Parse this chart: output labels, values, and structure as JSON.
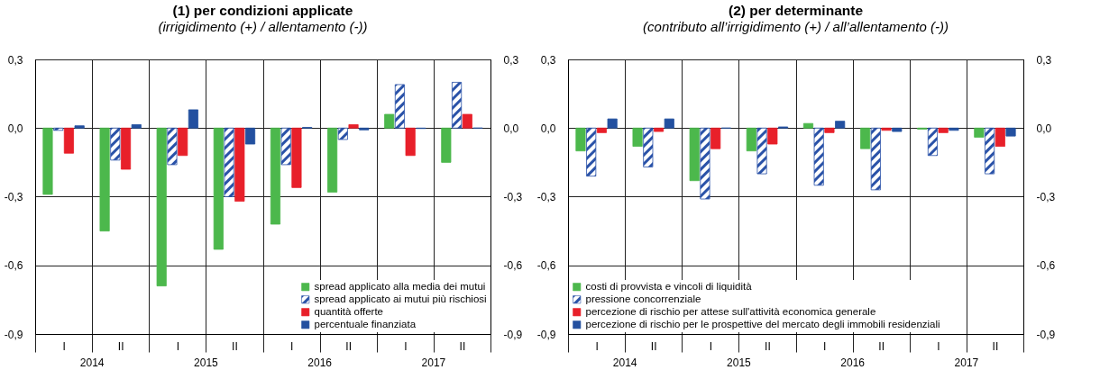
{
  "chart_data": [
    {
      "type": "bar",
      "title": "(1) per condizioni applicate",
      "subtitle": "(irrigidimento (+) / allentamento (-))",
      "categories": [
        "I",
        "II",
        "I",
        "II",
        "I",
        "II",
        "I",
        "II"
      ],
      "series": [
        {
          "name": "spread applicato alla media dei mutui",
          "color": "#4cb84c",
          "values": [
            -0.29,
            -0.45,
            -0.69,
            -0.53,
            -0.42,
            -0.28,
            0.06,
            -0.15
          ]
        },
        {
          "name": "spread applicato ai mutui più rischiosi",
          "color": "#2a52a8",
          "values": [
            -0.01,
            -0.14,
            -0.16,
            -0.3,
            -0.16,
            -0.05,
            0.19,
            0.2
          ]
        },
        {
          "name": "quantità offerte",
          "color": "#e8202a",
          "values": [
            -0.11,
            -0.18,
            -0.12,
            -0.32,
            -0.26,
            0.015,
            -0.12,
            0.06
          ]
        },
        {
          "name": "percentuale finanziata",
          "color": "#2350a0",
          "values": [
            0.01,
            0.015,
            0.08,
            -0.07,
            0.003,
            -0.008,
            -0.002,
            0.0
          ]
        }
      ],
      "ylim": [
        -0.9,
        0.3
      ],
      "yticks": [
        {
          "value": -0.9,
          "label": "-0,9"
        },
        {
          "value": -0.6,
          "label": "-0,6"
        },
        {
          "value": -0.3,
          "label": "-0,3"
        },
        {
          "value": 0,
          "label": "0,0"
        },
        {
          "value": 0.3,
          "label": "0,3"
        }
      ],
      "grid": true,
      "legend": "bottom right",
      "annotations": [
        "2014",
        "2015",
        "2016",
        "2017"
      ]
    },
    {
      "type": "bar",
      "title": "(2) per determinante",
      "subtitle": "(contributo all’irrigidimento (+) / all’allentamento (-))",
      "categories": [
        "I",
        "II",
        "I",
        "II",
        "I",
        "II",
        "I",
        "II"
      ],
      "series": [
        {
          "name": "costi di provvista e vincoli di liquidità",
          "color": "#4cb84c",
          "values": [
            -0.1,
            -0.08,
            -0.23,
            -0.1,
            0.02,
            -0.09,
            -0.005,
            -0.04
          ]
        },
        {
          "name": "pressione concorrenziale",
          "color": "#2a52a8",
          "values": [
            -0.21,
            -0.17,
            -0.31,
            -0.2,
            -0.25,
            -0.27,
            -0.12,
            -0.2
          ]
        },
        {
          "name": "percezione di rischio per attese sull'attività economica generale",
          "color": "#e8202a",
          "values": [
            -0.02,
            -0.015,
            -0.09,
            -0.07,
            -0.02,
            -0.01,
            -0.02,
            -0.08
          ]
        },
        {
          "name": "percezione di rischio per le prospettive del mercato degli immobili residenziali",
          "color": "#2350a0",
          "values": [
            0.04,
            0.04,
            0.0,
            0.005,
            0.03,
            -0.015,
            -0.01,
            -0.035
          ]
        }
      ],
      "ylim": [
        -0.9,
        0.3
      ],
      "yticks": [
        {
          "value": -0.9,
          "label": "-0,9"
        },
        {
          "value": -0.6,
          "label": "-0,6"
        },
        {
          "value": -0.3,
          "label": "-0,3"
        },
        {
          "value": 0,
          "label": "0,0"
        },
        {
          "value": 0.3,
          "label": "0,3"
        }
      ],
      "grid": true,
      "legend": "bottom left",
      "annotations": [
        "2014",
        "2015",
        "2016",
        "2017"
      ]
    }
  ]
}
